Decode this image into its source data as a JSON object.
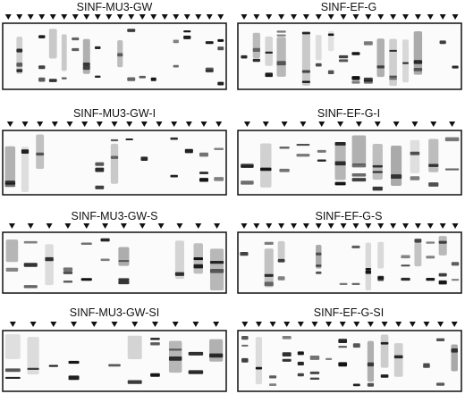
{
  "panels": [
    {
      "title": "SINF-MU3-GW"
    },
    {
      "title": "SINF-EF-G"
    },
    {
      "title": "SINF-MU3-GW-I"
    },
    {
      "title": "SINF-EF-G-I"
    },
    {
      "title": "SINF-MU3-GW-S"
    },
    {
      "title": "SINF-EF-G-S"
    },
    {
      "title": "SINF-MU3-GW-SI"
    },
    {
      "title": "SINF-EF-G-SI"
    }
  ]
}
